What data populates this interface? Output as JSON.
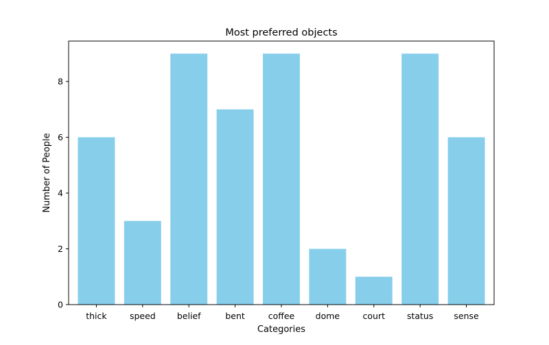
{
  "chart_data": {
    "type": "bar",
    "title": "Most preferred objects",
    "xlabel": "Categories",
    "ylabel": "Number of People",
    "categories": [
      "thick",
      "speed",
      "belief",
      "bent",
      "coffee",
      "dome",
      "court",
      "status",
      "sense"
    ],
    "values": [
      6,
      3,
      9,
      7,
      9,
      2,
      1,
      9,
      6
    ],
    "ylim": [
      0,
      9.45
    ],
    "yticks": [
      0,
      2,
      4,
      6,
      8
    ],
    "grid": false,
    "bar_color": "#87ceeb"
  }
}
